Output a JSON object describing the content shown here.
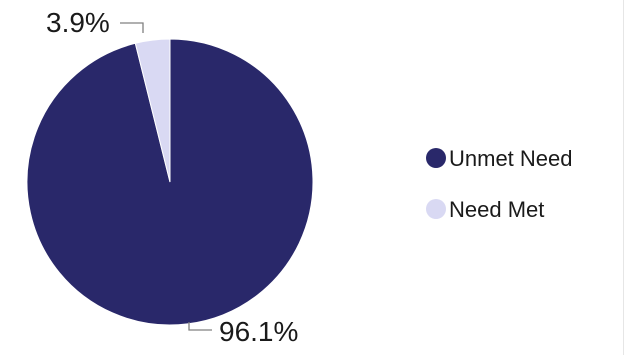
{
  "chart_data": {
    "type": "pie",
    "slices": [
      {
        "label": "Unmet Need",
        "value": 96.1,
        "value_label": "96.1%",
        "color": "#29286a"
      },
      {
        "label": "Need Met",
        "value": 3.9,
        "value_label": "3.9%",
        "color": "#d9d9f3"
      }
    ],
    "legend": {
      "position": "right",
      "entries": [
        "Unmet Need",
        "Need Met"
      ]
    },
    "leader_line_color": "#808080"
  }
}
